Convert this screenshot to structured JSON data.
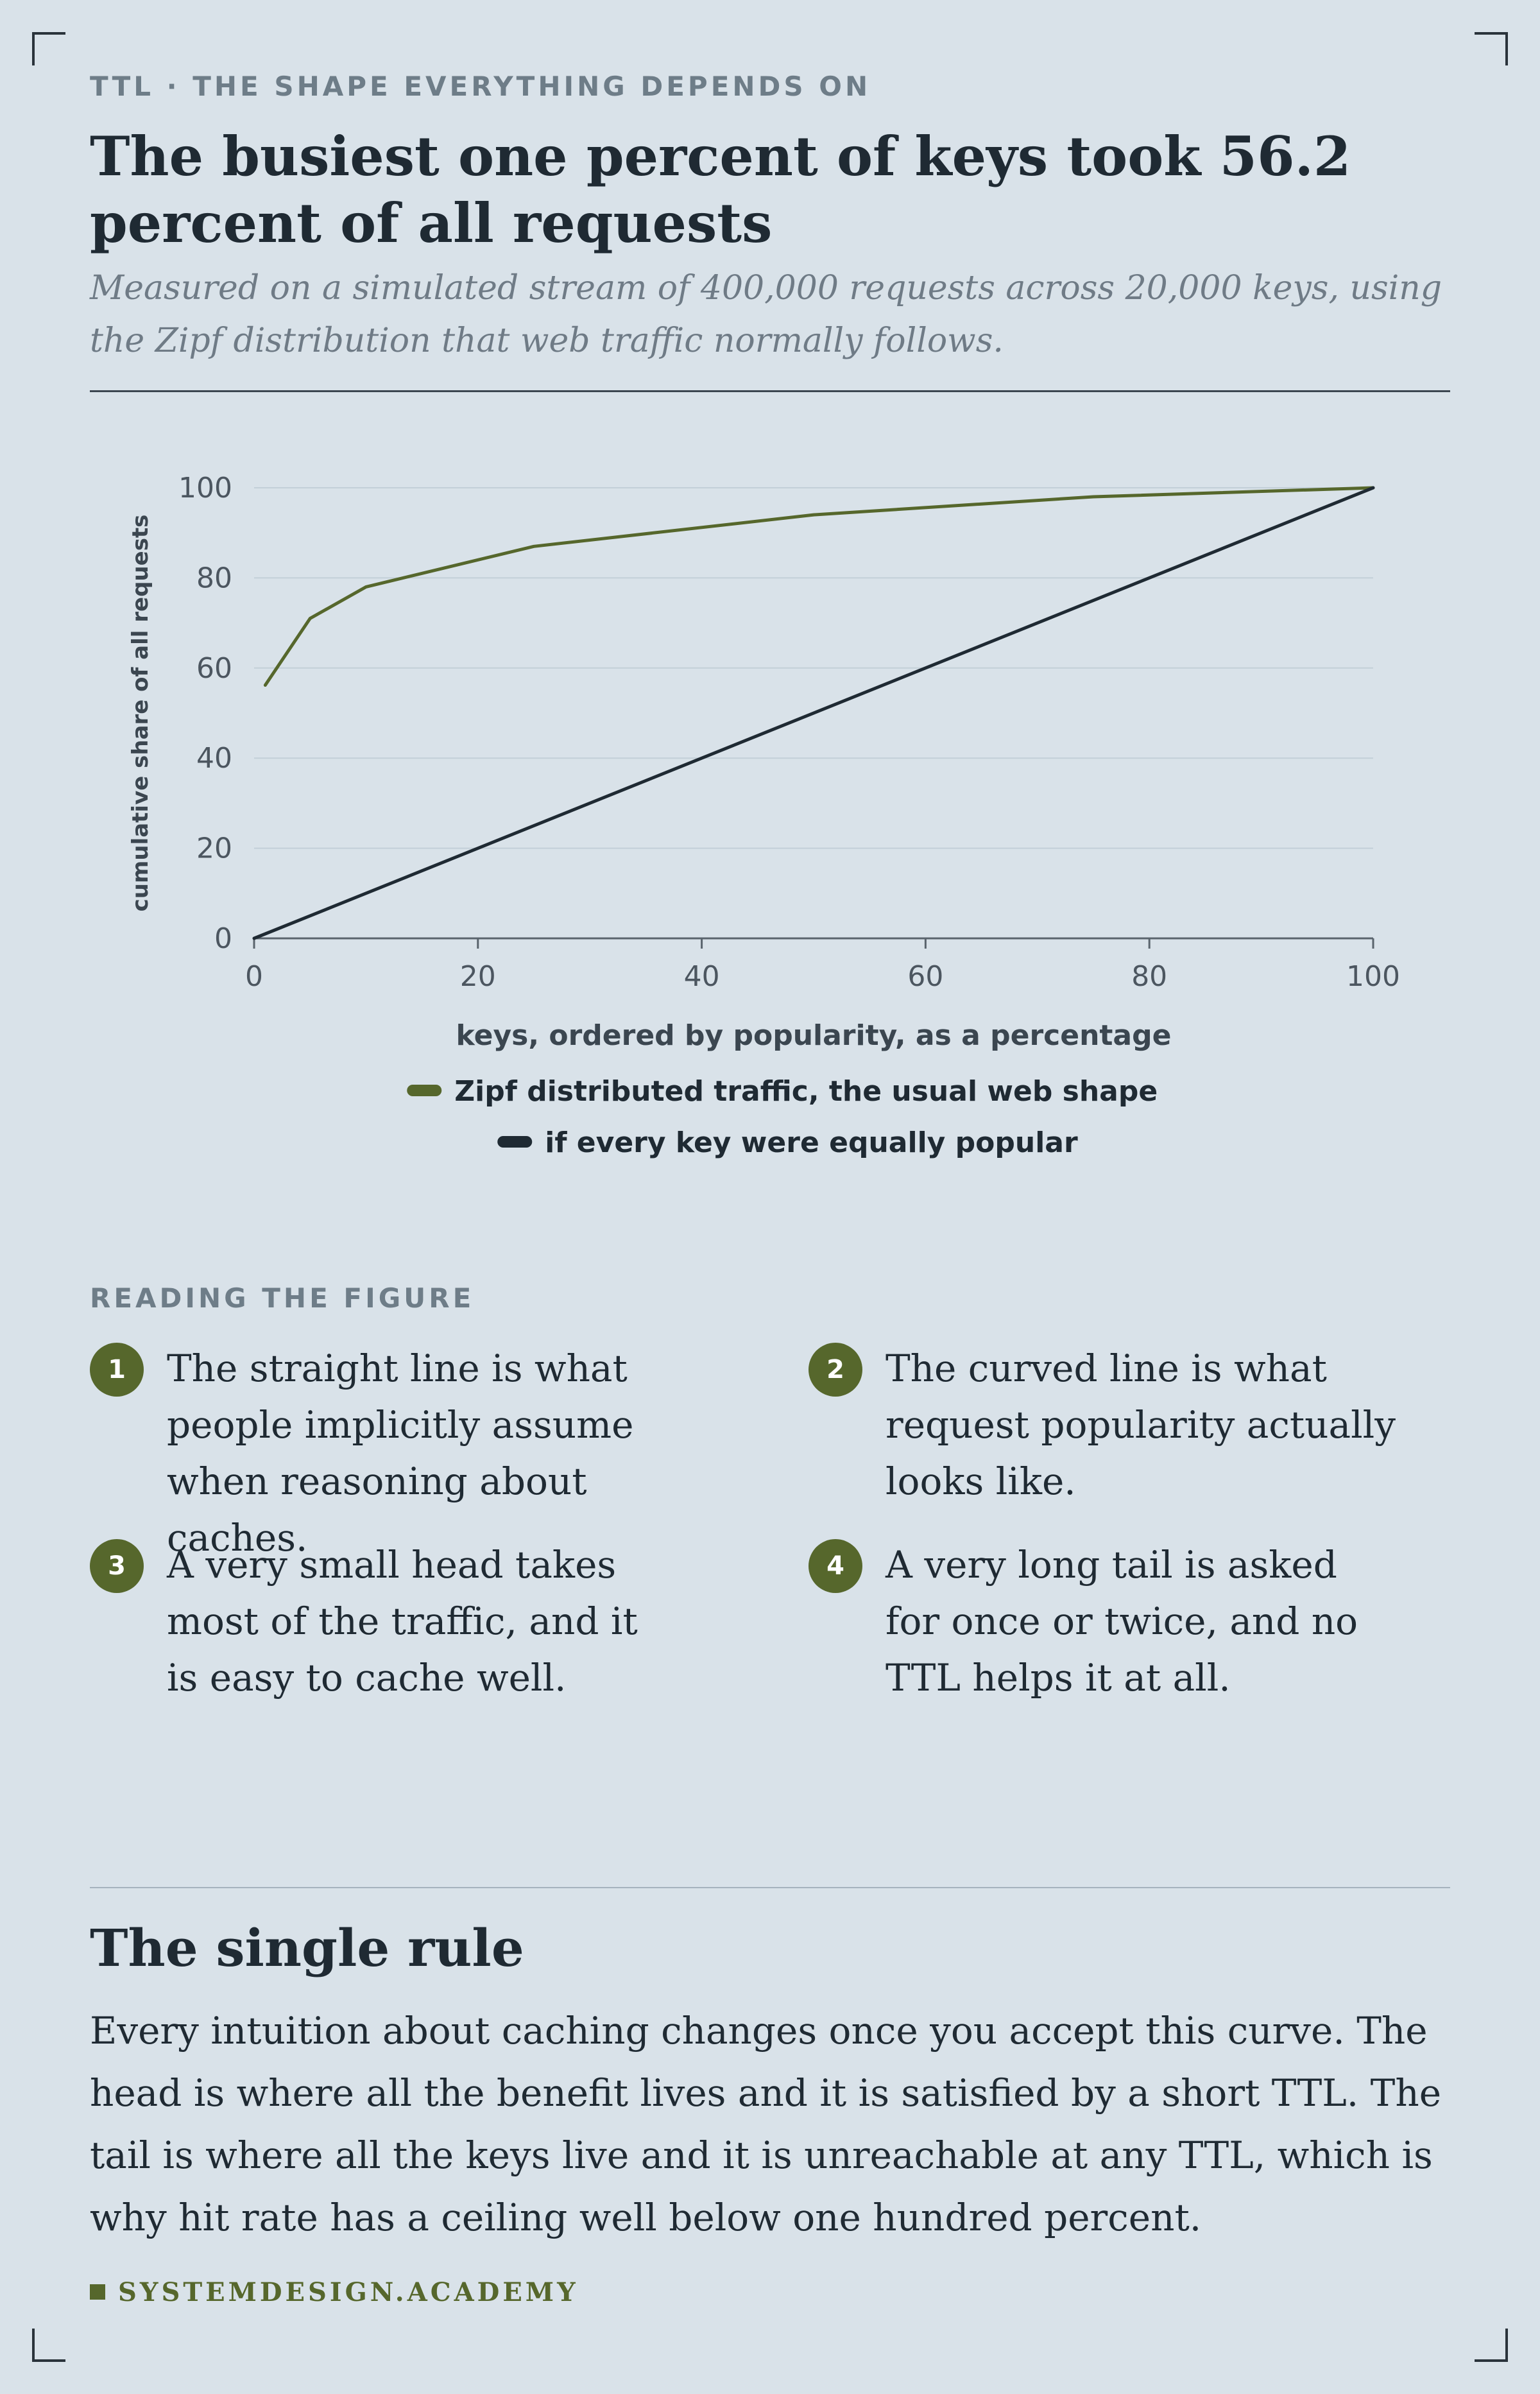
{
  "header": {
    "eyebrow": "TTL · THE SHAPE EVERYTHING DEPENDS ON",
    "title": "The busiest one percent of keys took 56.2 percent of all requests",
    "subtitle": "Measured on a simulated stream of 400,000 requests across 20,000 keys, using the Zipf distribution that web traffic normally follows."
  },
  "chart_data": {
    "type": "line",
    "xlabel": "keys, ordered by popularity, as a percentage",
    "ylabel": "cumulative share of all requests",
    "xlim": [
      0,
      100
    ],
    "ylim": [
      0,
      100
    ],
    "xticks": [
      "0",
      "20",
      "40",
      "60",
      "80",
      "100"
    ],
    "yticks": [
      "0",
      "20",
      "40",
      "60",
      "80",
      "100"
    ],
    "grid": "horizontal",
    "legend_position": "bottom",
    "series": [
      {
        "name": "Zipf distributed traffic, the usual web shape",
        "color": "#56672c",
        "x": [
          1,
          5,
          10,
          25,
          50,
          75,
          100
        ],
        "y": [
          56.2,
          71,
          78,
          87,
          94,
          98,
          100
        ]
      },
      {
        "name": "if every key were equally popular",
        "color": "#1f2a33",
        "x": [
          0,
          100
        ],
        "y": [
          0,
          100
        ]
      }
    ]
  },
  "reading": {
    "label": "READING THE FIGURE",
    "notes": [
      {
        "num": "1",
        "text": "The straight line is what people implicitly assume when reasoning about caches."
      },
      {
        "num": "2",
        "text": "The curved line is what request popularity actually looks like."
      },
      {
        "num": "3",
        "text": "A very small head takes most of the traffic, and it is easy to cache well."
      },
      {
        "num": "4",
        "text": "A very long tail is asked for once or twice, and no TTL helps it at all."
      }
    ]
  },
  "rule": {
    "title": "The single rule",
    "body": "Every intuition about caching changes once you accept this curve. The head is where all the benefit lives and it is satisfied by a short TTL. The tail is where all the keys live and it is unreachable at any TTL, which is why hit rate has a ceiling well below one hundred percent."
  },
  "footer": {
    "brand": "SYSTEMDESIGN.ACADEMY",
    "accent": "#56672c"
  }
}
